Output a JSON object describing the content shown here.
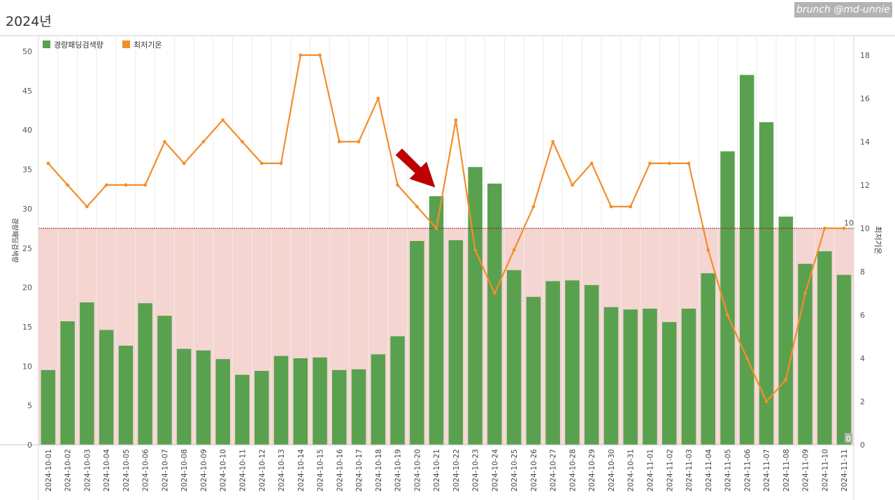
{
  "page_title": "2024년",
  "watermark": "brunch @md-unnie",
  "reference_line_label": "10",
  "zero_label": "0",
  "colors": {
    "bar": "#59a14f",
    "line": "#f28e2b",
    "band": "#f5d5d1",
    "ref_line": "#8b1a1a",
    "arrow": "#c00000"
  },
  "chart_data": {
    "type": "bar",
    "categories": [
      "2024-10-01",
      "2024-10-02",
      "2024-10-03",
      "2024-10-04",
      "2024-10-05",
      "2024-10-06",
      "2024-10-07",
      "2024-10-08",
      "2024-10-09",
      "2024-10-10",
      "2024-10-11",
      "2024-10-12",
      "2024-10-13",
      "2024-10-14",
      "2024-10-15",
      "2024-10-16",
      "2024-10-17",
      "2024-10-18",
      "2024-10-19",
      "2024-10-20",
      "2024-10-21",
      "2024-10-22",
      "2024-10-23",
      "2024-10-24",
      "2024-10-25",
      "2024-10-26",
      "2024-10-27",
      "2024-10-28",
      "2024-10-29",
      "2024-10-30",
      "2024-10-31",
      "2024-11-01",
      "2024-11-02",
      "2024-11-03",
      "2024-11-04",
      "2024-11-05",
      "2024-11-06",
      "2024-11-07",
      "2024-11-08",
      "2024-11-09",
      "2024-11-10",
      "2024-11-11"
    ],
    "series": [
      {
        "name": "경량패딩검색량",
        "type": "bar",
        "axis": "left",
        "values": [
          9.5,
          15.7,
          18.1,
          14.6,
          12.6,
          18.0,
          16.4,
          12.2,
          12.0,
          10.9,
          8.9,
          9.4,
          11.3,
          11.0,
          11.1,
          9.5,
          9.6,
          11.5,
          13.8,
          25.9,
          31.6,
          26.0,
          35.3,
          33.2,
          22.2,
          18.8,
          20.8,
          20.9,
          20.3,
          17.5,
          17.2,
          17.3,
          15.6,
          17.3,
          21.8,
          37.3,
          47.0,
          41.0,
          29.0,
          23.0,
          24.6,
          21.6
        ]
      },
      {
        "name": "최저기온",
        "type": "line",
        "axis": "right",
        "values": [
          13,
          12,
          11,
          12,
          12,
          12,
          14,
          13,
          14,
          15,
          14,
          13,
          13,
          18,
          18,
          14,
          14,
          16,
          12,
          11,
          10,
          15,
          9,
          7,
          9,
          11,
          14,
          12,
          13,
          11,
          11,
          13,
          13,
          13,
          9,
          6,
          4,
          2,
          3,
          7,
          10,
          10
        ]
      }
    ],
    "legend": [
      "경량패딩검색량",
      "최저기온"
    ],
    "legend_position": "top-left",
    "ylabel": "경량패딩검색량",
    "y2label": "최저기온",
    "ylim": [
      0,
      52
    ],
    "y2lim": [
      0,
      18.9
    ],
    "yticks": [
      0,
      5,
      10,
      15,
      20,
      25,
      30,
      35,
      40,
      45,
      50
    ],
    "y2ticks": [
      0,
      2,
      4,
      6,
      8,
      10,
      12,
      14,
      16,
      18
    ],
    "reference_line": {
      "axis": "right",
      "value": 10,
      "shaded_below": true
    },
    "grid": "vertical"
  }
}
